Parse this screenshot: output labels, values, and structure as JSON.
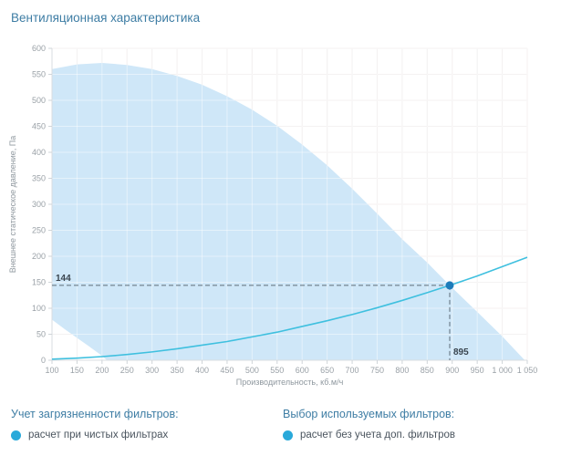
{
  "page": {
    "title": "Вентиляционная характеристика"
  },
  "colors": {
    "title": "#3e7da4",
    "heading": "#3e7da4",
    "tick_label": "#9aa1a7",
    "axis_title": "#8f989f",
    "grid": "#ece8e8",
    "grid_on_area": "rgba(255,255,255,0.45)",
    "axis_line": "#d9dde0",
    "tick_mark": "#cfd4d8",
    "area_fill": "#cfe7f8",
    "system_curve": "#3fc0df",
    "marker": "#1d7cba",
    "crosshair": "#5d6d79",
    "annotation": "#39444e",
    "legend_dot": "#29a9da",
    "legend_item_text": "#4a545e"
  },
  "chart_data": {
    "type": "area",
    "title": "Вентиляционная характеристика",
    "xlabel": "Производительность, кб.м/ч",
    "ylabel": "Внешнее статическое давление, Па",
    "xlim": [
      100,
      1050
    ],
    "ylim": [
      0,
      600
    ],
    "grid": true,
    "legend_position": "none",
    "x_ticks": [
      100,
      150,
      200,
      250,
      300,
      350,
      400,
      450,
      500,
      550,
      600,
      650,
      700,
      750,
      800,
      850,
      900,
      950,
      1000,
      1050
    ],
    "x_tick_labels": [
      "100",
      "150",
      "200",
      "250",
      "300",
      "350",
      "400",
      "450",
      "500",
      "550",
      "600",
      "650",
      "700",
      "750",
      "800",
      "850",
      "900",
      "950",
      "1 000",
      "1 050"
    ],
    "y_ticks": [
      0,
      50,
      100,
      150,
      200,
      250,
      300,
      350,
      400,
      450,
      500,
      550,
      600
    ],
    "series": [
      {
        "name": "fan-envelope-upper",
        "role": "area-upper-boundary",
        "points": [
          [
            100,
            560
          ],
          [
            150,
            569
          ],
          [
            200,
            572
          ],
          [
            250,
            568
          ],
          [
            300,
            560
          ],
          [
            350,
            547
          ],
          [
            400,
            530
          ],
          [
            450,
            508
          ],
          [
            500,
            482
          ],
          [
            550,
            451
          ],
          [
            600,
            415
          ],
          [
            650,
            375
          ],
          [
            700,
            330
          ],
          [
            750,
            282
          ],
          [
            800,
            233
          ],
          [
            850,
            188
          ],
          [
            895,
            144
          ],
          [
            950,
            93
          ],
          [
            1000,
            46
          ],
          [
            1045,
            0
          ]
        ]
      },
      {
        "name": "fan-envelope-lower",
        "role": "area-lower-boundary",
        "points": [
          [
            100,
            78
          ],
          [
            125,
            60
          ],
          [
            150,
            43
          ],
          [
            175,
            26
          ],
          [
            195,
            12
          ],
          [
            210,
            0
          ]
        ]
      },
      {
        "name": "system-resistance-curve",
        "role": "line",
        "points": [
          [
            100,
            2
          ],
          [
            150,
            4
          ],
          [
            200,
            7
          ],
          [
            250,
            11
          ],
          [
            300,
            16
          ],
          [
            350,
            22
          ],
          [
            400,
            29
          ],
          [
            450,
            36
          ],
          [
            500,
            45
          ],
          [
            550,
            54
          ],
          [
            600,
            65
          ],
          [
            650,
            76
          ],
          [
            700,
            88
          ],
          [
            750,
            101
          ],
          [
            800,
            115
          ],
          [
            850,
            130
          ],
          [
            895,
            144
          ],
          [
            950,
            162
          ],
          [
            1000,
            180
          ],
          [
            1050,
            198
          ]
        ]
      }
    ],
    "operating_point": {
      "x": 895,
      "y": 144,
      "x_label": "895",
      "y_label": "144"
    }
  },
  "legend": {
    "contamination": {
      "heading": "Учет загрязненности фильтров:",
      "item": "расчет при чистых фильтрах"
    },
    "selection": {
      "heading": "Выбор используемых фильтров:",
      "item": "расчет без учета доп. фильтров"
    }
  }
}
